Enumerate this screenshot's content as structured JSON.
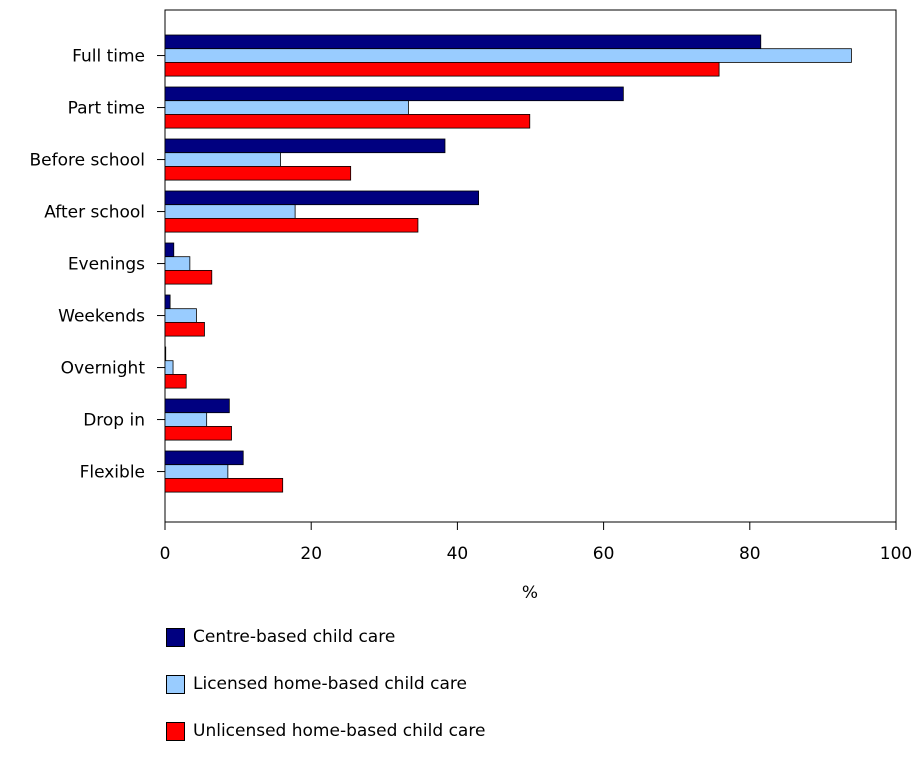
{
  "chart_data": {
    "type": "bar",
    "orientation": "horizontal",
    "title": "",
    "xlabel": "%",
    "ylabel": "",
    "xlim": [
      0,
      100
    ],
    "xticks": [
      0,
      20,
      40,
      60,
      80,
      100
    ],
    "grid": false,
    "legend_position": "bottom",
    "categories": [
      "Full time",
      "Part time",
      "Before school",
      "After school",
      "Evenings",
      "Weekends",
      "Overnight",
      "Drop in",
      "Flexible"
    ],
    "series": [
      {
        "name": "Centre-based child care",
        "color": "#000080",
        "values": [
          81.5,
          62.7,
          38.3,
          42.9,
          1.2,
          0.7,
          0.1,
          8.8,
          10.7
        ]
      },
      {
        "name": "Licensed home-based child care",
        "color": "#99ccff",
        "values": [
          93.9,
          33.3,
          15.8,
          17.8,
          3.4,
          4.3,
          1.1,
          5.7,
          8.6
        ]
      },
      {
        "name": "Unlicensed home-based child care",
        "color": "#ff0000",
        "values": [
          75.8,
          49.9,
          25.4,
          34.6,
          6.4,
          5.4,
          2.9,
          9.1,
          16.1
        ]
      }
    ]
  }
}
